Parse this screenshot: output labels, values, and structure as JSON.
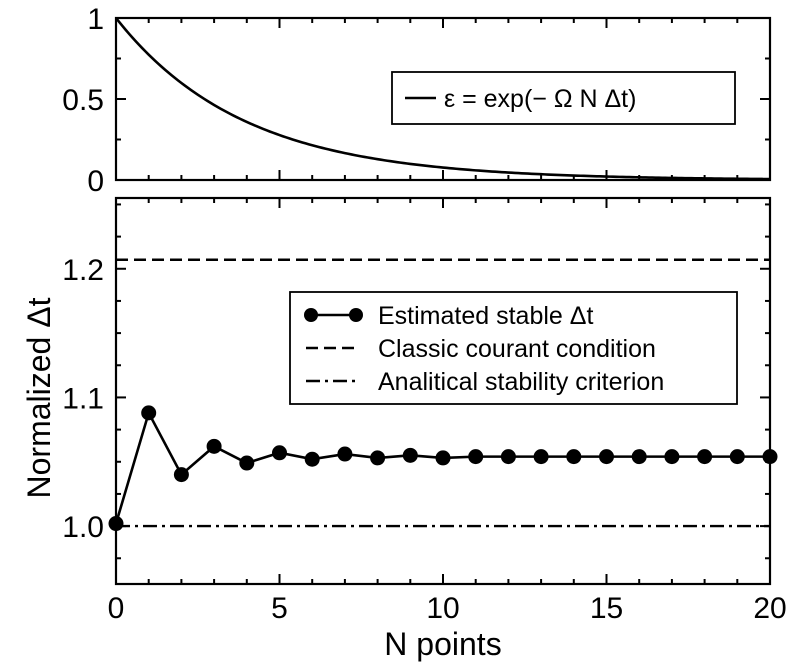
{
  "chart_data": [
    {
      "type": "line",
      "title": "",
      "xlabel": "",
      "ylabel": "",
      "xlim": [
        0,
        20
      ],
      "ylim": [
        0,
        1
      ],
      "yticks": [
        "0",
        "0.5",
        "1"
      ],
      "series": [
        {
          "name": "ε = exp(− Ω N Δt)",
          "style": "solid",
          "decay_rate": 0.2565,
          "x": [
            0,
            1,
            2,
            3,
            4,
            5,
            6,
            7,
            8,
            9,
            10,
            11,
            12,
            13,
            14,
            15,
            16,
            17,
            18,
            19,
            20
          ],
          "y": [
            1.0,
            0.774,
            0.599,
            0.463,
            0.359,
            0.277,
            0.215,
            0.166,
            0.129,
            0.099,
            0.077,
            0.06,
            0.046,
            0.036,
            0.028,
            0.021,
            0.017,
            0.013,
            0.01,
            0.008,
            0.006
          ]
        }
      ],
      "legend": {
        "position": "top-right",
        "entries": [
          "ε = exp(− Ω N Δt)"
        ]
      },
      "grid": false
    },
    {
      "type": "line",
      "title": "",
      "xlabel": "N points",
      "ylabel": "Normalized Δt",
      "xlim": [
        0,
        20
      ],
      "ylim": [
        0.955,
        1.255
      ],
      "xticks": [
        "0",
        "5",
        "10",
        "15",
        "20"
      ],
      "yticks": [
        "1.0",
        "1.1",
        "1.2"
      ],
      "series": [
        {
          "name": "Estimated stable Δt",
          "style": "solid-markers",
          "x": [
            0,
            1,
            2,
            3,
            4,
            5,
            6,
            7,
            8,
            9,
            10,
            11,
            12,
            13,
            14,
            15,
            16,
            17,
            18,
            19,
            20
          ],
          "y": [
            1.002,
            1.088,
            1.04,
            1.062,
            1.049,
            1.057,
            1.052,
            1.056,
            1.053,
            1.055,
            1.053,
            1.054,
            1.054,
            1.054,
            1.054,
            1.054,
            1.054,
            1.054,
            1.054,
            1.054,
            1.054
          ]
        },
        {
          "name": "Classic courant condition",
          "style": "dashed",
          "x": [
            0,
            20
          ],
          "y": [
            1.207,
            1.207
          ]
        },
        {
          "name": "Analitical stability criterion",
          "style": "dash-dot",
          "x": [
            0,
            20
          ],
          "y": [
            1.0,
            1.0
          ]
        }
      ],
      "legend": {
        "position": "center-right",
        "entries": [
          "Estimated stable Δt",
          "Classic courant condition",
          "Analitical stability criterion"
        ]
      },
      "grid": false
    }
  ]
}
